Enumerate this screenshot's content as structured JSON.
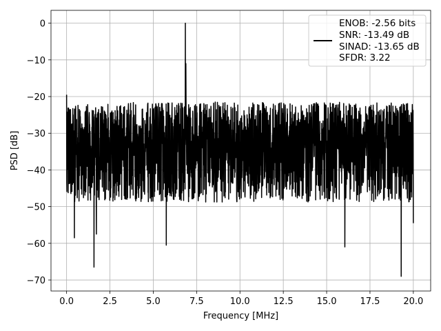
{
  "chart_data": {
    "type": "line",
    "title": "",
    "xlabel": "Frequency [MHz]",
    "ylabel": "PSD [dB]",
    "xlim": [
      -0.9,
      21.0
    ],
    "ylim": [
      -73,
      3.5
    ],
    "xticks": [
      0.0,
      2.5,
      5.0,
      7.5,
      10.0,
      12.5,
      15.0,
      17.5,
      20.0
    ],
    "xtick_labels": [
      "0.0",
      "2.5",
      "5.0",
      "7.5",
      "10.0",
      "12.5",
      "15.0",
      "17.5",
      "20.0"
    ],
    "yticks": [
      0,
      -10,
      -20,
      -30,
      -40,
      -50,
      -60,
      -70
    ],
    "ytick_labels": [
      "0",
      "−10",
      "−20",
      "−30",
      "−40",
      "−50",
      "−60",
      "−70"
    ],
    "grid": true,
    "legend_position": "top-right",
    "legend_entries": [
      "ENOB: -2.56 bits",
      "SNR: -13.49 dB",
      "SINAD: -13.65 dB",
      "SFDR: 3.22"
    ],
    "series_color": "#000000",
    "series": [
      {
        "name": "ENOB: -2.56 bits",
        "x_start": 0.0,
        "x_end": 20.0,
        "noise_floor_mean": -32,
        "noise_upper": -20,
        "noise_lower": -48,
        "spikes": [
          {
            "x": 6.85,
            "y": 0
          },
          {
            "x": 6.88,
            "y": -11
          },
          {
            "x": 0.0,
            "y": -19.5
          },
          {
            "x": 1.58,
            "y": -66.5
          },
          {
            "x": 0.45,
            "y": -58.5
          },
          {
            "x": 1.72,
            "y": -57.5
          },
          {
            "x": 5.75,
            "y": -60.5
          },
          {
            "x": 16.05,
            "y": -61.0
          },
          {
            "x": 19.3,
            "y": -69.0
          },
          {
            "x": 20.0,
            "y": -54.5
          }
        ]
      }
    ]
  }
}
